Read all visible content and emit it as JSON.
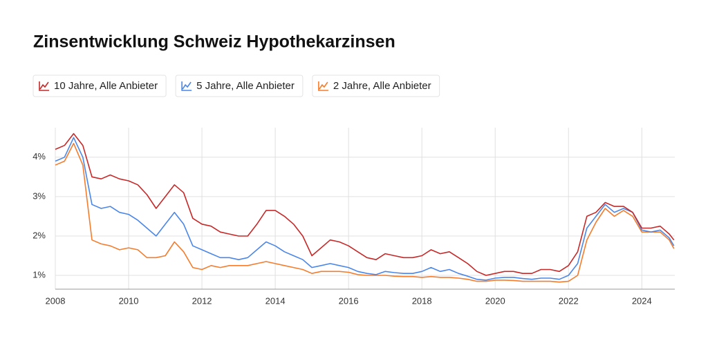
{
  "chart_data": {
    "type": "line",
    "title": "Zinsentwicklung Schweiz Hypothekarzinsen",
    "x": [
      2008,
      2008.25,
      2008.5,
      2008.75,
      2009,
      2009.25,
      2009.5,
      2009.75,
      2010,
      2010.25,
      2010.5,
      2010.75,
      2011,
      2011.25,
      2011.5,
      2011.75,
      2012,
      2012.25,
      2012.5,
      2012.75,
      2013,
      2013.25,
      2013.5,
      2013.75,
      2014,
      2014.25,
      2014.5,
      2014.75,
      2015,
      2015.25,
      2015.5,
      2015.75,
      2016,
      2016.25,
      2016.5,
      2016.75,
      2017,
      2017.25,
      2017.5,
      2017.75,
      2018,
      2018.25,
      2018.5,
      2018.75,
      2019,
      2019.25,
      2019.5,
      2019.75,
      2020,
      2020.25,
      2020.5,
      2020.75,
      2021,
      2021.25,
      2021.5,
      2021.75,
      2022,
      2022.25,
      2022.5,
      2022.75,
      2023,
      2023.25,
      2023.5,
      2023.75,
      2024,
      2024.25,
      2024.5,
      2024.75,
      2024.875
    ],
    "series": [
      {
        "name": "10 Jahre, Alle Anbieter",
        "color": "#c62828",
        "values": [
          4.2,
          4.3,
          4.6,
          4.3,
          3.5,
          3.45,
          3.55,
          3.45,
          3.4,
          3.3,
          3.05,
          2.7,
          3.0,
          3.3,
          3.1,
          2.45,
          2.3,
          2.25,
          2.1,
          2.05,
          2.0,
          2.0,
          2.3,
          2.65,
          2.65,
          2.5,
          2.3,
          2.0,
          1.5,
          1.7,
          1.9,
          1.85,
          1.75,
          1.6,
          1.45,
          1.4,
          1.55,
          1.5,
          1.45,
          1.45,
          1.5,
          1.65,
          1.55,
          1.6,
          1.45,
          1.3,
          1.1,
          1.0,
          1.05,
          1.1,
          1.1,
          1.05,
          1.05,
          1.15,
          1.15,
          1.1,
          1.25,
          1.6,
          2.5,
          2.6,
          2.85,
          2.75,
          2.75,
          2.6,
          2.2,
          2.2,
          2.25,
          2.05,
          1.9
        ]
      },
      {
        "name": "5 Jahre, Alle Anbieter",
        "color": "#4a86e8",
        "values": [
          3.9,
          4.0,
          4.5,
          4.0,
          2.8,
          2.7,
          2.75,
          2.6,
          2.55,
          2.4,
          2.2,
          2.0,
          2.3,
          2.6,
          2.3,
          1.75,
          1.65,
          1.55,
          1.45,
          1.45,
          1.4,
          1.45,
          1.65,
          1.85,
          1.75,
          1.6,
          1.5,
          1.4,
          1.2,
          1.25,
          1.3,
          1.25,
          1.2,
          1.1,
          1.05,
          1.02,
          1.1,
          1.07,
          1.05,
          1.05,
          1.1,
          1.2,
          1.1,
          1.15,
          1.05,
          0.98,
          0.9,
          0.88,
          0.93,
          0.95,
          0.95,
          0.92,
          0.9,
          0.93,
          0.93,
          0.9,
          1.0,
          1.3,
          2.2,
          2.5,
          2.8,
          2.6,
          2.7,
          2.6,
          2.15,
          2.1,
          2.15,
          1.95,
          1.75
        ]
      },
      {
        "name": "2 Jahre, Alle Anbieter",
        "color": "#f57c2c",
        "values": [
          3.8,
          3.9,
          4.35,
          3.8,
          1.9,
          1.8,
          1.75,
          1.65,
          1.7,
          1.65,
          1.45,
          1.45,
          1.5,
          1.85,
          1.6,
          1.2,
          1.15,
          1.25,
          1.2,
          1.25,
          1.25,
          1.25,
          1.3,
          1.35,
          1.3,
          1.25,
          1.2,
          1.15,
          1.05,
          1.1,
          1.1,
          1.1,
          1.08,
          1.02,
          1.0,
          1.0,
          1.0,
          0.98,
          0.97,
          0.97,
          0.95,
          0.97,
          0.95,
          0.95,
          0.93,
          0.9,
          0.85,
          0.85,
          0.88,
          0.88,
          0.87,
          0.85,
          0.85,
          0.85,
          0.85,
          0.83,
          0.85,
          1.0,
          1.9,
          2.35,
          2.7,
          2.5,
          2.65,
          2.5,
          2.1,
          2.1,
          2.1,
          1.9,
          1.68
        ]
      }
    ],
    "xlim": [
      2008,
      2024.9
    ],
    "xticks": [
      2008,
      2010,
      2012,
      2014,
      2016,
      2018,
      2020,
      2022,
      2024
    ],
    "ylim": [
      0.65,
      4.75
    ],
    "yticks": [
      {
        "value": 1,
        "label": "1%"
      },
      {
        "value": 2,
        "label": "2%"
      },
      {
        "value": 3,
        "label": "3%"
      },
      {
        "value": 4,
        "label": "4%"
      }
    ],
    "grid": true,
    "legend": "top-left"
  }
}
